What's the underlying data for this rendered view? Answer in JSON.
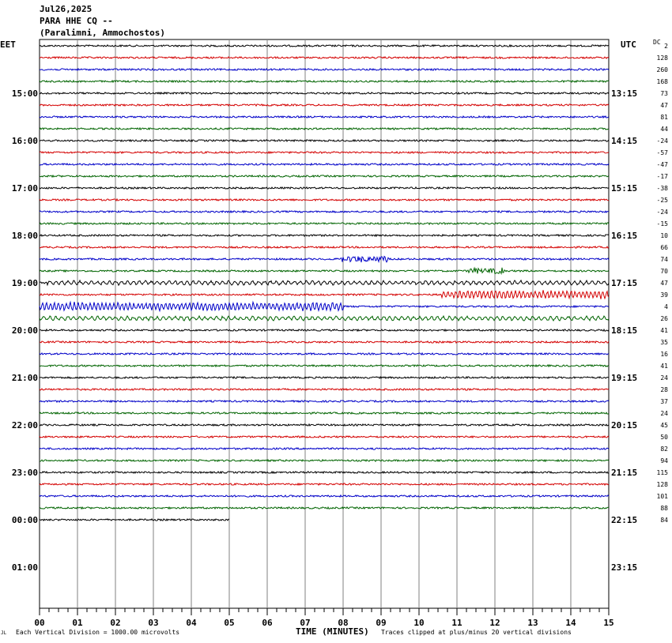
{
  "header": {
    "date": "Jul26,2025",
    "station": "PARA HHE CQ --",
    "location": "(Paralimni, Ammochostos)"
  },
  "left_tz": "EET",
  "right_tz": "UTC",
  "dc_label": "DC",
  "footer": {
    "scale_note": "Each Vertical Division = 1000.00 microvolts",
    "x_title": "TIME (MINUTES)",
    "clip_note": "Traces clipped at plus/minus 20 vertical divisions",
    "corner_mark": "JL"
  },
  "colors": {
    "cycle": [
      "#000000",
      "#d40000",
      "#0000c8",
      "#006400"
    ],
    "grid": "#808080"
  },
  "chart_data": {
    "type": "line",
    "title": "PARA HHE CQ --",
    "xlabel": "TIME (MINUTES)",
    "xlim": [
      0,
      15
    ],
    "x_ticks": [
      "00",
      "01",
      "02",
      "03",
      "04",
      "05",
      "06",
      "07",
      "08",
      "09",
      "10",
      "11",
      "12",
      "13",
      "14",
      "15"
    ],
    "left_hour_labels": [
      "15:00",
      "16:00",
      "17:00",
      "18:00",
      "19:00",
      "20:00",
      "21:00",
      "22:00",
      "23:00",
      "00:00",
      "01:00"
    ],
    "right_hour_labels": [
      "13:15",
      "14:15",
      "15:15",
      "16:15",
      "17:15",
      "18:15",
      "19:15",
      "20:15",
      "21:15",
      "22:15",
      "23:15"
    ],
    "dc_offsets": [
      "2",
      "128",
      "260",
      "168",
      "73",
      "47",
      "81",
      "44",
      "-24",
      "-57",
      "-47",
      "-17",
      "-38",
      "-25",
      "-24",
      "-15",
      "10",
      "66",
      "74",
      "70",
      "47",
      "39",
      "4",
      "26",
      "41",
      "35",
      "16",
      "41",
      "24",
      "28",
      "37",
      "24",
      "45",
      "50",
      "82",
      "94",
      "115",
      "128",
      "101",
      "88",
      "84"
    ],
    "trace_count": 41,
    "last_trace_minutes": 5,
    "events": [
      {
        "trace_index": 18,
        "start_min": 7.9,
        "end_min": 9.2,
        "amplitude": "medium"
      },
      {
        "trace_index": 19,
        "start_min": 11.3,
        "end_min": 12.3,
        "amplitude": "medium"
      },
      {
        "trace_index": 20,
        "start_min": 0.2,
        "end_min": 15,
        "amplitude": "low-period"
      },
      {
        "trace_index": 21,
        "start_min": 10.6,
        "end_min": 15,
        "amplitude": "large"
      },
      {
        "trace_index": 22,
        "start_min": 0,
        "end_min": 8,
        "amplitude": "large"
      },
      {
        "trace_index": 23,
        "start_min": 0,
        "end_min": 15,
        "amplitude": "low-period"
      }
    ]
  }
}
